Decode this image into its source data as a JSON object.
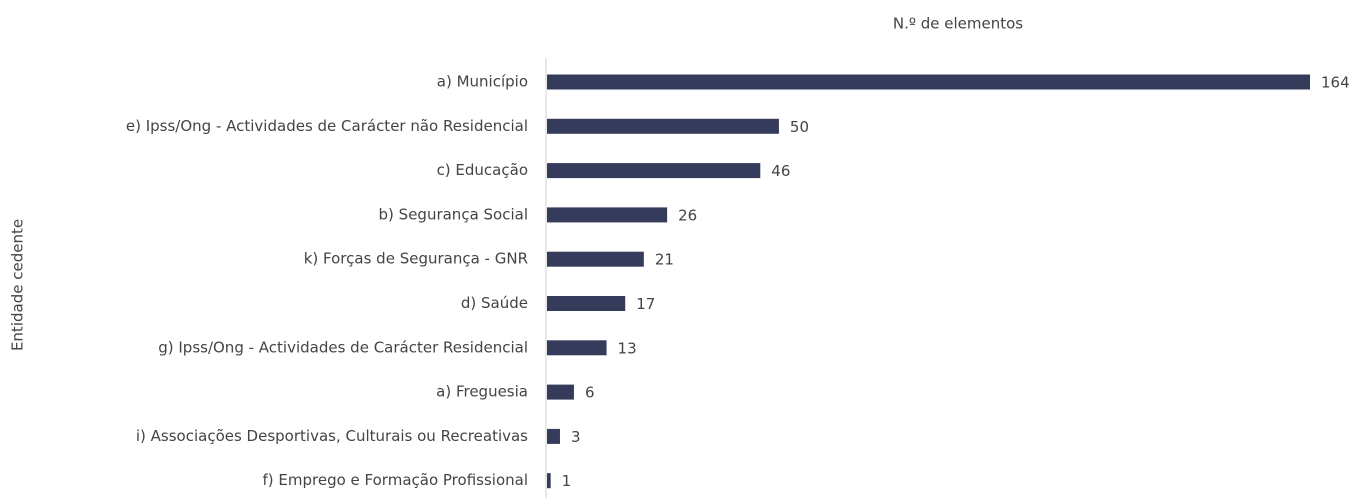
{
  "chart_data": {
    "type": "barh",
    "title": "N.º de elementos",
    "ylabel": "Entidade cedente",
    "categories": [
      "a) Município",
      "e) Ipss/Ong - Actividades de Carácter não Residencial",
      "c) Educação",
      "b) Segurança Social",
      "k) Forças de Segurança - GNR",
      "d) Saúde",
      "g) Ipss/Ong - Actividades de Carácter Residencial",
      "a) Freguesia",
      "i) Associações Desportivas, Culturais ou Recreativas",
      "f) Emprego e Formação Profissional"
    ],
    "values": [
      164,
      50,
      46,
      26,
      21,
      17,
      13,
      6,
      3,
      1
    ],
    "color": "#353b5b"
  }
}
